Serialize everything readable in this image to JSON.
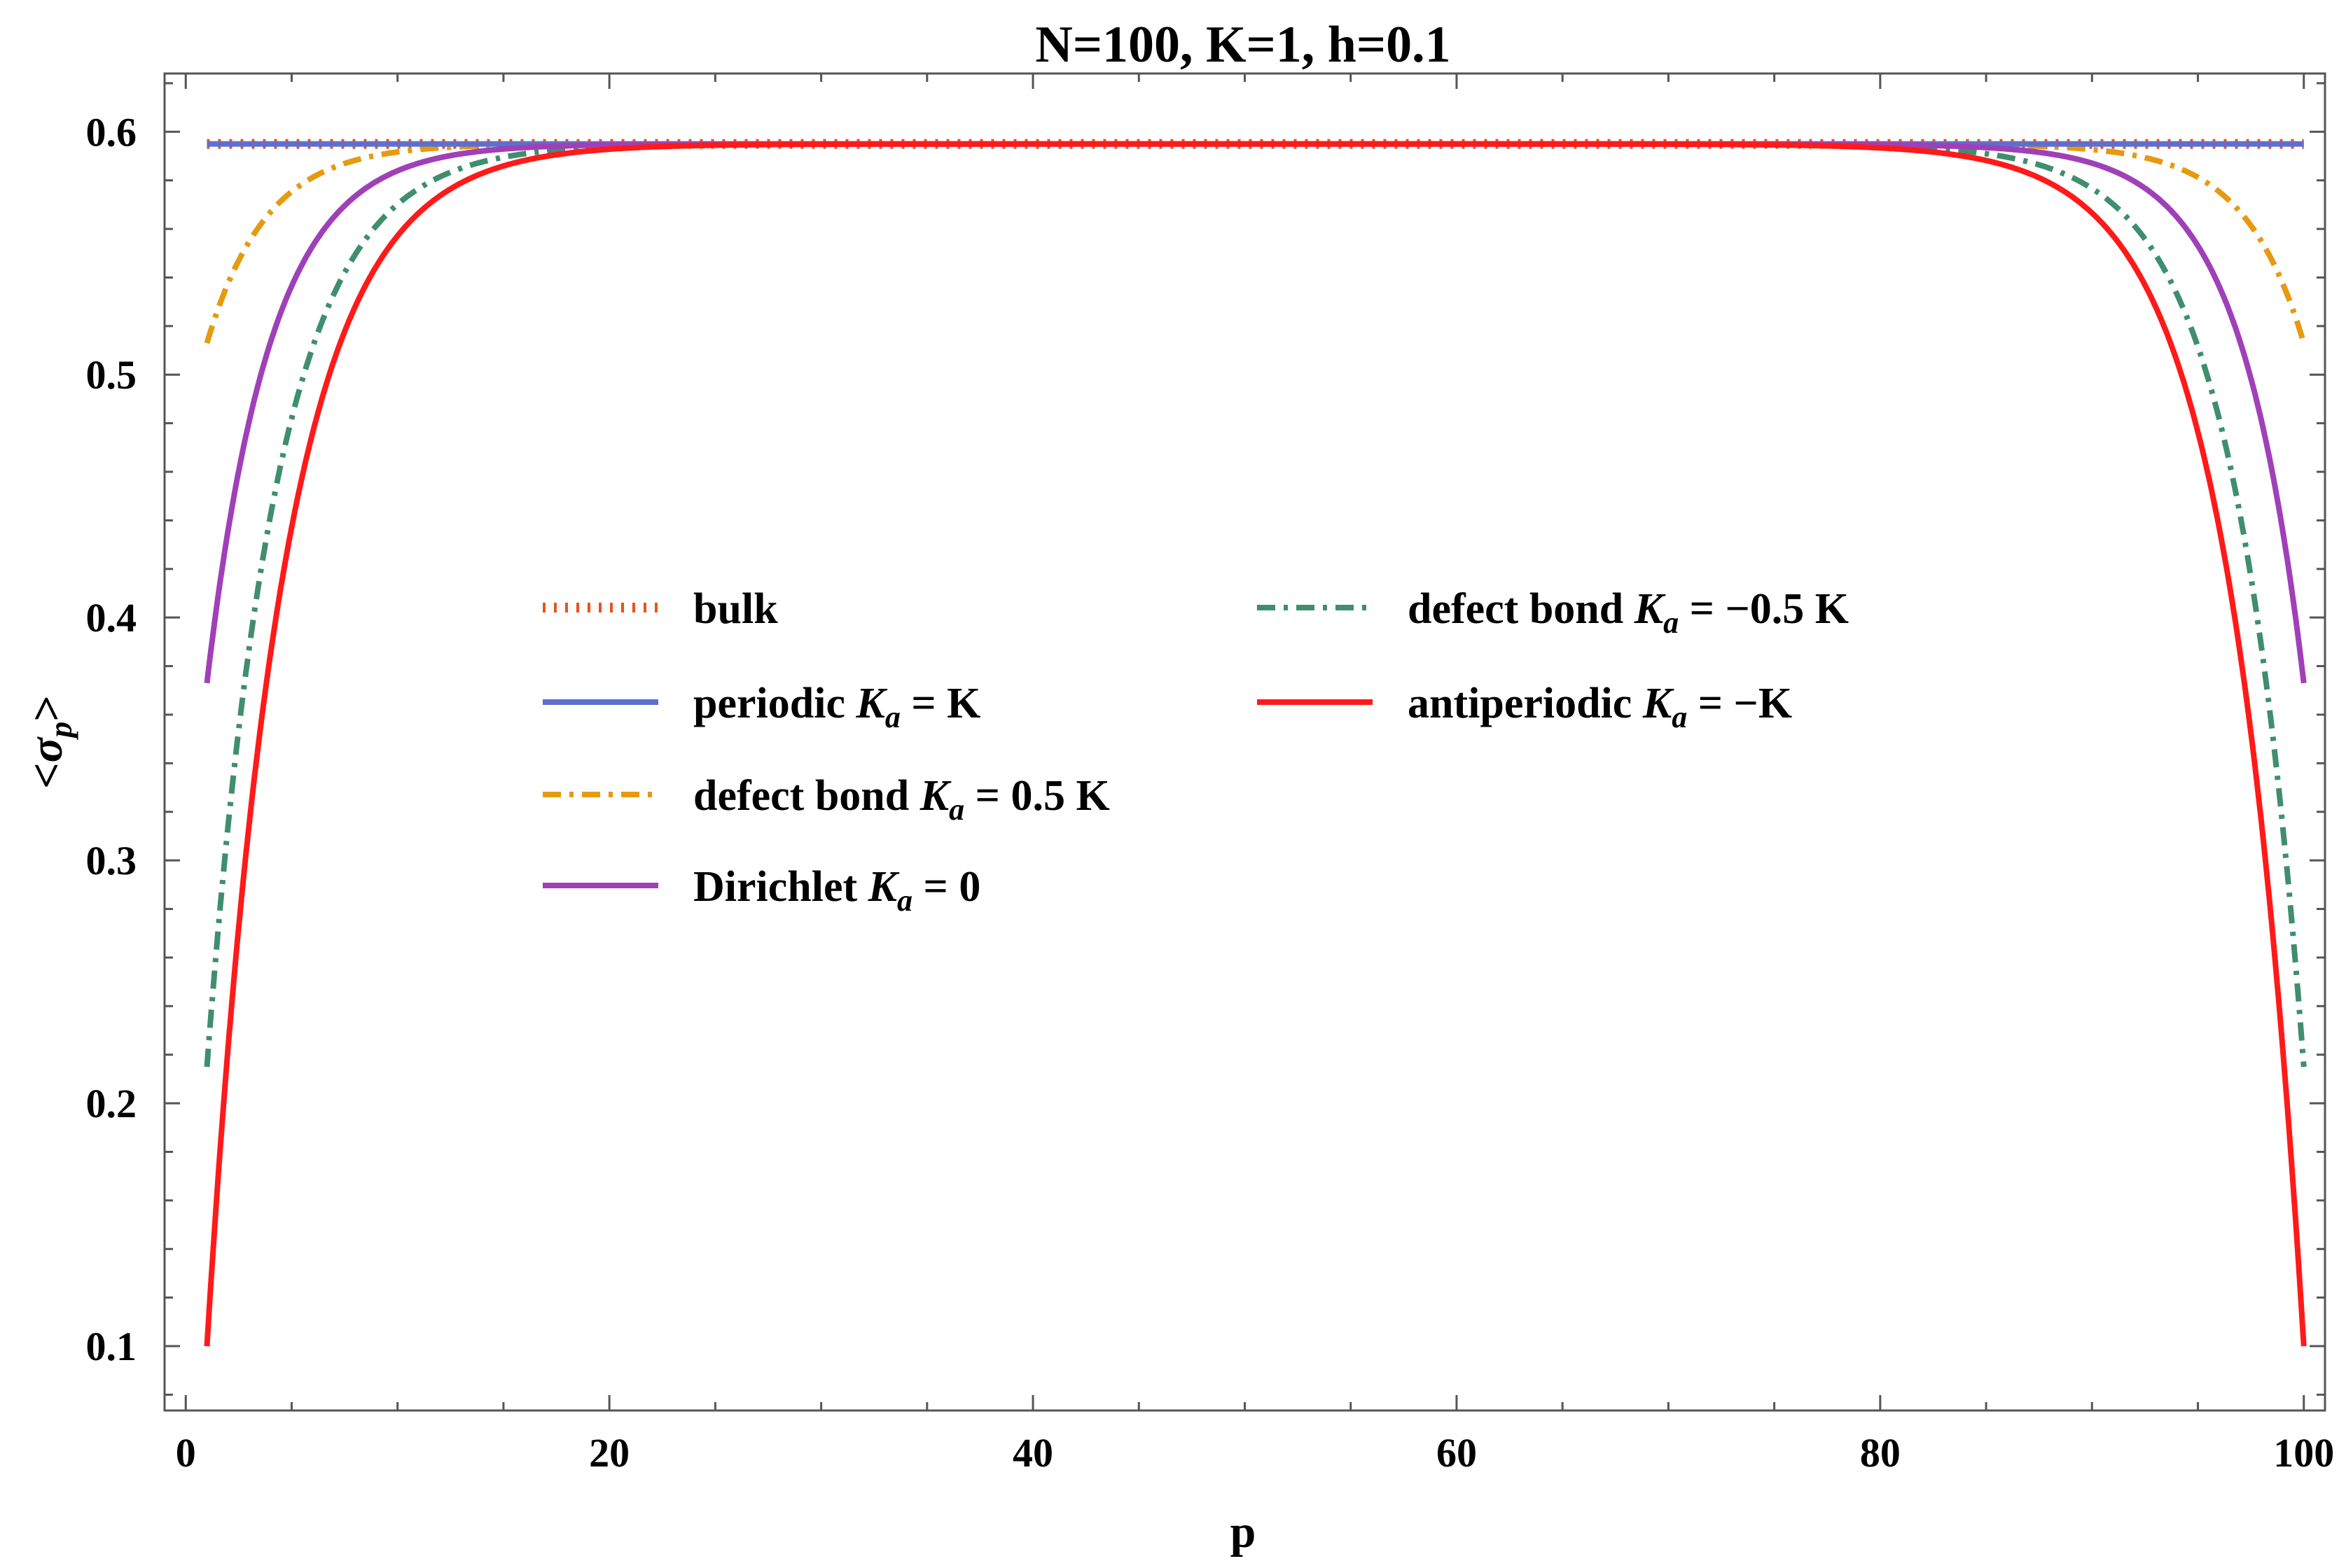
{
  "chart_data": {
    "type": "line",
    "title": "N=100, K=1, h=0.1",
    "xlabel": "p",
    "ylabel_parts": [
      "<",
      "σ",
      "p",
      ">"
    ],
    "xlim": [
      -1,
      101
    ],
    "ylim": [
      0.0735,
      0.624
    ],
    "xticks": [
      0,
      20,
      40,
      60,
      80,
      100
    ],
    "yticks": [
      0.1,
      0.2,
      0.3,
      0.4,
      0.5,
      0.6
    ],
    "ytick_labels": [
      "0.1",
      "0.2",
      "0.3",
      "0.4",
      "0.5",
      "0.6"
    ],
    "grid": false,
    "legend_position": "center",
    "x": [
      1,
      2,
      3,
      4,
      5,
      6,
      7,
      8,
      9,
      10,
      11,
      12,
      13,
      14,
      15,
      16,
      17,
      18,
      19,
      20,
      21,
      22,
      23,
      24,
      25,
      26,
      27,
      28,
      29,
      30,
      31,
      32,
      33,
      34,
      35,
      36,
      37,
      38,
      39,
      40,
      41,
      42,
      43,
      44,
      45,
      46,
      47,
      48,
      49,
      50,
      51,
      52,
      53,
      54,
      55,
      56,
      57,
      58,
      59,
      60,
      61,
      62,
      63,
      64,
      65,
      66,
      67,
      68,
      69,
      70,
      71,
      72,
      73,
      74,
      75,
      76,
      77,
      78,
      79,
      80,
      81,
      82,
      83,
      84,
      85,
      86,
      87,
      88,
      89,
      90,
      91,
      92,
      93,
      94,
      95,
      96,
      97,
      98,
      99,
      100
    ],
    "series": [
      {
        "name": "bulk",
        "color": "#e8541d",
        "dash": "dotted",
        "constant": 0.595
      },
      {
        "name": "periodic K_a = K",
        "color": "#5f6fce",
        "dash": "solid",
        "constant": 0.595
      },
      {
        "name": "defect bond K_a = 0.5 K",
        "color": "#e69a10",
        "dash": "dashdot",
        "edge_value": 0.513,
        "decay": 2.8
      },
      {
        "name": "Dirichlet K_a = 0",
        "color": "#a040b8",
        "dash": "solid",
        "edge_value": 0.373,
        "decay": 3.0
      },
      {
        "name": "defect bond K_a = −0.5 K",
        "color": "#3f8e6e",
        "dash": "dashdot",
        "edge_value": 0.215,
        "decay": 3.3
      },
      {
        "name": "antiperiodic K_a = −K",
        "color": "#ff1a1a",
        "dash": "solid",
        "edge_value": 0.1,
        "decay": 3.5
      }
    ],
    "bulk_value": 0.595
  },
  "legend": {
    "items": [
      {
        "pre": "bulk",
        "it": "",
        "sub": "",
        "post": ""
      },
      {
        "pre": "periodic ",
        "it": "K",
        "sub": "a",
        "post": " = K"
      },
      {
        "pre": "defect bond ",
        "it": "K",
        "sub": "a",
        "post": " = 0.5 K"
      },
      {
        "pre": "Dirichlet ",
        "it": "K",
        "sub": "a",
        "post": " = 0"
      },
      {
        "pre": "defect bond ",
        "it": "K",
        "sub": "a",
        "post": " = −0.5 K"
      },
      {
        "pre": "antiperiodic ",
        "it": "K",
        "sub": "a",
        "post": " = −K"
      }
    ]
  }
}
